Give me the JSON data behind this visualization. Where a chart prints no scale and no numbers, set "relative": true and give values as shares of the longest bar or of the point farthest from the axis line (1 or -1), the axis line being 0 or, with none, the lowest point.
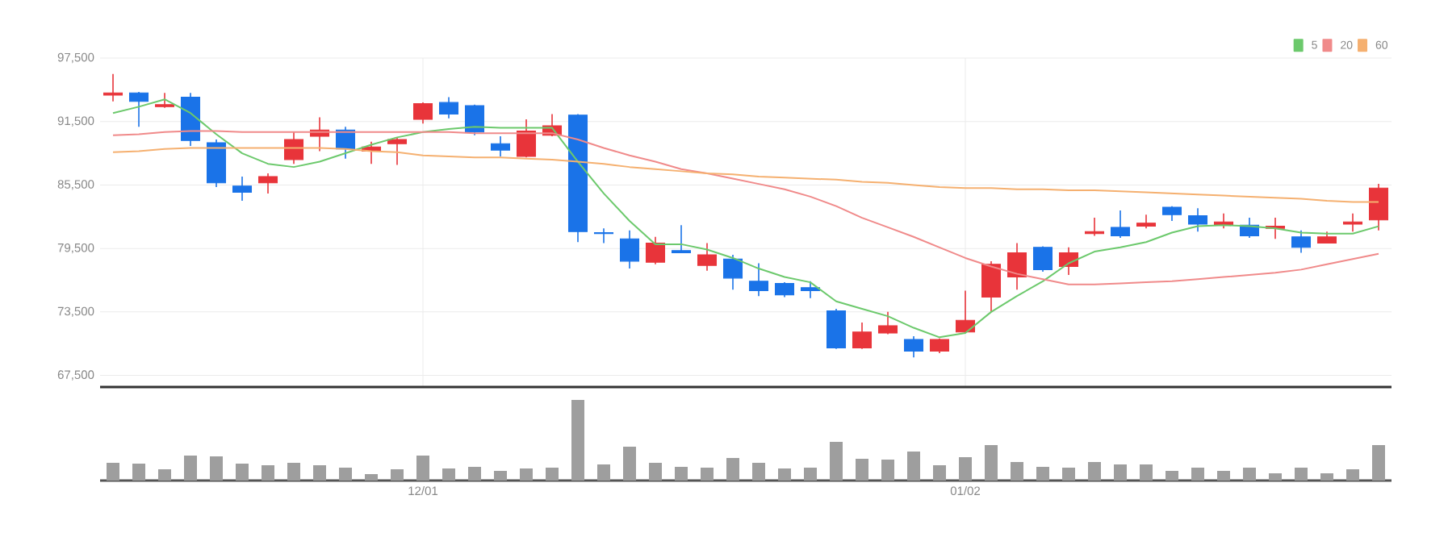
{
  "chart_data": [
    {
      "type": "candlestick",
      "categories": [
        null,
        null,
        null,
        null,
        null,
        null,
        null,
        null,
        null,
        null,
        null,
        null,
        null,
        null,
        null,
        null,
        null,
        null,
        null,
        null,
        null,
        null,
        null,
        null,
        null,
        null,
        null,
        null,
        null,
        null,
        null,
        null,
        null,
        null,
        null,
        null,
        null,
        null,
        null,
        null,
        null,
        null,
        null,
        null,
        null,
        null,
        null,
        null,
        null,
        null
      ],
      "ohlc": [
        [
          94000,
          96000,
          93400,
          94200
        ],
        [
          94200,
          94300,
          91000,
          93400
        ],
        [
          92900,
          94200,
          92800,
          93100
        ],
        [
          93800,
          94200,
          89200,
          89700
        ],
        [
          89500,
          89800,
          85300,
          85700
        ],
        [
          85400,
          86300,
          84000,
          84800
        ],
        [
          85700,
          86600,
          84700,
          86300
        ],
        [
          87900,
          90500,
          87500,
          89800
        ],
        [
          90100,
          91900,
          88700,
          90700
        ],
        [
          90700,
          91000,
          88000,
          88900
        ],
        [
          88700,
          89600,
          87500,
          89100
        ],
        [
          89400,
          90000,
          87400,
          89800
        ],
        [
          91700,
          93300,
          91300,
          93200
        ],
        [
          93300,
          93800,
          91800,
          92200
        ],
        [
          93000,
          93100,
          90200,
          90500
        ],
        [
          89400,
          90100,
          88200,
          88800
        ],
        [
          88200,
          91700,
          88100,
          90600
        ],
        [
          90200,
          92200,
          90100,
          91100
        ],
        [
          92100,
          92200,
          80100,
          81100
        ],
        [
          81000,
          81400,
          80000,
          80900
        ],
        [
          80400,
          81200,
          77600,
          78300
        ],
        [
          78200,
          80600,
          78000,
          80000
        ],
        [
          79300,
          81700,
          79100,
          79100
        ],
        [
          77900,
          80000,
          77400,
          78900
        ],
        [
          78500,
          78900,
          75600,
          76700
        ],
        [
          76400,
          78100,
          75000,
          75500
        ],
        [
          76200,
          76300,
          74900,
          75100
        ],
        [
          75800,
          76400,
          74800,
          75500
        ],
        [
          73600,
          73800,
          70000,
          70100
        ],
        [
          70100,
          72500,
          70000,
          71600
        ],
        [
          71500,
          73500,
          71400,
          72200
        ],
        [
          70900,
          71200,
          69200,
          69800
        ],
        [
          69800,
          71000,
          69600,
          70900
        ],
        [
          71600,
          75500,
          71500,
          72700
        ],
        [
          74900,
          78300,
          73500,
          78000
        ],
        [
          76800,
          80000,
          75600,
          79100
        ],
        [
          79600,
          79700,
          77300,
          77500
        ],
        [
          77800,
          79600,
          77000,
          79100
        ],
        [
          80900,
          82400,
          80700,
          81100
        ],
        [
          81500,
          83100,
          80500,
          80700
        ],
        [
          81600,
          82700,
          81400,
          81900
        ],
        [
          83400,
          83500,
          82100,
          82700
        ],
        [
          82600,
          83300,
          81100,
          81800
        ],
        [
          81700,
          82800,
          81400,
          82000
        ],
        [
          81700,
          82400,
          80500,
          80700
        ],
        [
          81400,
          82400,
          80400,
          81600
        ],
        [
          80600,
          81200,
          79100,
          79600
        ],
        [
          80000,
          81100,
          80000,
          80600
        ],
        [
          81800,
          82800,
          81100,
          82000
        ],
        [
          82200,
          85600,
          81200,
          85200
        ]
      ],
      "colors": [
        "#e8343a",
        "#1a73e8",
        "#e8343a",
        "#1a73e8",
        "#1a73e8",
        "#1a73e8",
        "#e8343a",
        "#e8343a",
        "#e8343a",
        "#1a73e8",
        "#e8343a",
        "#e8343a",
        "#e8343a",
        "#1a73e8",
        "#1a73e8",
        "#1a73e8",
        "#e8343a",
        "#e8343a",
        "#1a73e8",
        "#1a73e8",
        "#1a73e8",
        "#e8343a",
        "#1a73e8",
        "#e8343a",
        "#1a73e8",
        "#1a73e8",
        "#1a73e8",
        "#1a73e8",
        "#1a73e8",
        "#e8343a",
        "#e8343a",
        "#1a73e8",
        "#e8343a",
        "#e8343a",
        "#e8343a",
        "#e8343a",
        "#1a73e8",
        "#e8343a",
        "#e8343a",
        "#1a73e8",
        "#e8343a",
        "#1a73e8",
        "#1a73e8",
        "#e8343a",
        "#1a73e8",
        "#e8343a",
        "#1a73e8",
        "#e8343a",
        "#e8343a",
        "#e8343a"
      ],
      "series": [
        {
          "name": "5",
          "type": "line",
          "color": "#6cc96c",
          "values": [
            92300,
            92900,
            93600,
            92300,
            90300,
            88500,
            87500,
            87200,
            87700,
            88500,
            89300,
            90000,
            90500,
            90800,
            91000,
            90900,
            90900,
            90900,
            87700,
            84700,
            82100,
            79900,
            79900,
            79400,
            78600,
            77600,
            76800,
            76300,
            74500,
            73800,
            73100,
            72000,
            71100,
            71500,
            73500,
            75000,
            76400,
            78100,
            79200,
            79600,
            80100,
            81000,
            81600,
            81700,
            81600,
            81400,
            81000,
            80900,
            80900,
            81600
          ]
        },
        {
          "name": "20",
          "type": "line",
          "color": "#f08a8a",
          "values": [
            90200,
            90300,
            90500,
            90600,
            90600,
            90500,
            90500,
            90500,
            90500,
            90500,
            90500,
            90500,
            90500,
            90500,
            90400,
            90400,
            90400,
            90400,
            89800,
            89000,
            88300,
            87700,
            87000,
            86600,
            86100,
            85600,
            85100,
            84400,
            83500,
            82400,
            81500,
            80600,
            79600,
            78600,
            77800,
            77100,
            76600,
            76100,
            76100,
            76200,
            76300,
            76400,
            76600,
            76800,
            77000,
            77200,
            77500,
            78000,
            78500,
            79000
          ]
        },
        {
          "name": "60",
          "type": "line",
          "color": "#f5b070",
          "values": [
            88600,
            88700,
            88900,
            89000,
            89000,
            89000,
            89000,
            89000,
            89000,
            88900,
            88700,
            88600,
            88300,
            88200,
            88100,
            88100,
            88000,
            87900,
            87700,
            87500,
            87200,
            87000,
            86800,
            86600,
            86500,
            86300,
            86200,
            86100,
            86000,
            85800,
            85700,
            85500,
            85300,
            85200,
            85200,
            85100,
            85100,
            85000,
            85000,
            84900,
            84800,
            84700,
            84600,
            84500,
            84400,
            84300,
            84200,
            84000,
            83900,
            83900
          ]
        }
      ],
      "ylim": [
        66400,
        97500
      ],
      "yticks": [
        {
          "value": 67500,
          "label": "67,500"
        },
        {
          "value": 73500,
          "label": "73,500"
        },
        {
          "value": 79500,
          "label": "79,500"
        },
        {
          "value": 85500,
          "label": "85,500"
        },
        {
          "value": 91500,
          "label": "91,500"
        },
        {
          "value": 97500,
          "label": "97,500"
        }
      ],
      "grid": true,
      "legend": "top right",
      "marker": "none",
      "line_style": "solid",
      "tick_labels": "y"
    },
    {
      "type": "bar",
      "relative": true,
      "color": "#9e9e9e",
      "tick_labels": "x",
      "categories": [
        null,
        null,
        null,
        null,
        null,
        null,
        null,
        null,
        null,
        null,
        null,
        null,
        "12/01",
        null,
        null,
        null,
        null,
        null,
        null,
        null,
        null,
        null,
        null,
        null,
        null,
        null,
        null,
        null,
        null,
        null,
        null,
        null,
        null,
        "01/02",
        null,
        null,
        null,
        null,
        null,
        null,
        null,
        null,
        null,
        null,
        null,
        null,
        null,
        null,
        null,
        null
      ],
      "values": [
        0.22,
        0.21,
        0.14,
        0.31,
        0.3,
        0.21,
        0.19,
        0.22,
        0.19,
        0.16,
        0.08,
        0.14,
        0.31,
        0.15,
        0.17,
        0.12,
        0.15,
        0.16,
        1,
        0.2,
        0.42,
        0.22,
        0.17,
        0.16,
        0.28,
        0.22,
        0.15,
        0.16,
        0.48,
        0.27,
        0.26,
        0.36,
        0.19,
        0.29,
        0.44,
        0.23,
        0.17,
        0.16,
        0.23,
        0.2,
        0.2,
        0.12,
        0.16,
        0.12,
        0.16,
        0.09,
        0.16,
        0.09,
        0.14,
        0.44
      ]
    }
  ]
}
